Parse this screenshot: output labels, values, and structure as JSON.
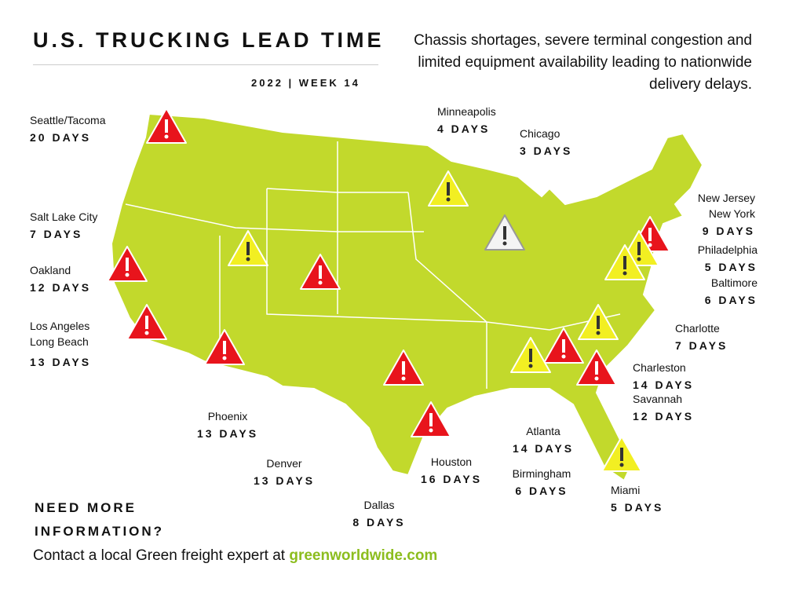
{
  "header": {
    "title": "U.S. TRUCKING LEAD TIME",
    "subtitle": "2022 | WEEK 14",
    "description": "Chassis shortages, severe terminal congestion and limited equipment availability leading to nationwide delivery delays."
  },
  "cities": [
    {
      "names": [
        "Seattle/Tacoma"
      ],
      "lead_time": "20 DAYS"
    },
    {
      "names": [
        "Salt Lake City"
      ],
      "lead_time": "7 DAYS"
    },
    {
      "names": [
        "Oakland"
      ],
      "lead_time": "12 DAYS"
    },
    {
      "names": [
        "Los Angeles",
        "Long Beach"
      ],
      "lead_time": "13 DAYS"
    },
    {
      "names": [
        "Phoenix"
      ],
      "lead_time": "13 DAYS"
    },
    {
      "names": [
        "Denver"
      ],
      "lead_time": "13 DAYS"
    },
    {
      "names": [
        "Dallas"
      ],
      "lead_time": "8 DAYS"
    },
    {
      "names": [
        "Houston"
      ],
      "lead_time": "16 DAYS"
    },
    {
      "names": [
        "Minneapolis"
      ],
      "lead_time": "4 DAYS"
    },
    {
      "names": [
        "Chicago"
      ],
      "lead_time": "3 DAYS"
    },
    {
      "names": [
        "Atlanta"
      ],
      "lead_time": "14 DAYS"
    },
    {
      "names": [
        "Birmingham"
      ],
      "lead_time": "6 DAYS"
    },
    {
      "names": [
        "Miami"
      ],
      "lead_time": "5 DAYS"
    },
    {
      "names": [
        "Charleston"
      ],
      "lead_time": "14 DAYS"
    },
    {
      "names": [
        "Savannah"
      ],
      "lead_time": "12 DAYS"
    },
    {
      "names": [
        "Charlotte"
      ],
      "lead_time": "7 DAYS"
    },
    {
      "names": [
        "Baltimore"
      ],
      "lead_time": "6 DAYS"
    },
    {
      "names": [
        "Philadelphia"
      ],
      "lead_time": "5 DAYS"
    },
    {
      "names": [
        "New Jersey",
        "New York"
      ],
      "lead_time": "9 DAYS"
    }
  ],
  "footer": {
    "cta": [
      "NEED MORE",
      "INFORMATION?"
    ],
    "contact": "Contact a local Green freight expert at",
    "link": "greenworldwide.com"
  }
}
